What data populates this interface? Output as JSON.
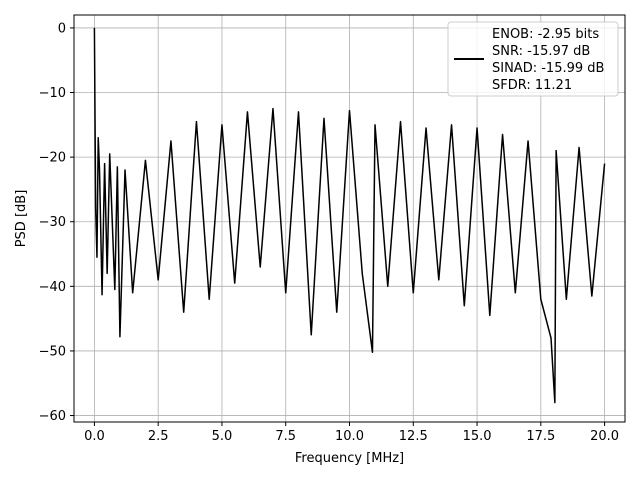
{
  "chart_data": {
    "type": "line",
    "xlabel": "Frequency [MHz]",
    "ylabel": "PSD [dB]",
    "xlim": [
      -0.8,
      20.8
    ],
    "ylim": [
      -61,
      2
    ],
    "x_ticks": [
      0.0,
      2.5,
      5.0,
      7.5,
      10.0,
      12.5,
      15.0,
      17.5,
      20.0
    ],
    "x_tick_labels": [
      "0.0",
      "2.5",
      "5.0",
      "7.5",
      "10.0",
      "12.5",
      "15.0",
      "17.5",
      "20.0"
    ],
    "y_ticks": [
      0,
      -10,
      -20,
      -30,
      -40,
      -50,
      -60
    ],
    "y_tick_labels": [
      "0",
      "−10",
      "−20",
      "−30",
      "−40",
      "−50",
      "−60"
    ],
    "grid": true,
    "legend_position": "top-right",
    "legend_lines": [
      "ENOB: -2.95 bits",
      "SNR: -15.97 dB",
      "SINAD: -15.99 dB",
      "SFDR: 11.21"
    ],
    "series": [
      {
        "color": "#000000",
        "x": [
          0.0,
          0.02,
          0.05,
          0.1,
          0.15,
          0.2,
          0.3,
          0.4,
          0.5,
          0.6,
          0.7,
          0.8,
          0.9,
          1.0,
          1.2,
          1.5,
          2.0,
          2.5,
          3.0,
          3.5,
          4.0,
          4.5,
          5.0,
          5.5,
          6.0,
          6.5,
          7.0,
          7.5,
          8.0,
          8.5,
          9.0,
          9.5,
          10.0,
          10.5,
          10.9,
          11.0,
          11.5,
          12.0,
          12.5,
          13.0,
          13.5,
          14.0,
          14.5,
          15.0,
          15.5,
          16.0,
          16.5,
          17.0,
          17.5,
          17.9,
          18.05,
          18.1,
          18.5,
          19.0,
          19.5,
          20.0
        ],
        "y": [
          0.0,
          -11.7,
          -28.0,
          -35.5,
          -17.0,
          -22.0,
          -41.3,
          -21.0,
          -38.0,
          -19.5,
          -30.0,
          -40.5,
          -21.5,
          -47.8,
          -22.0,
          -41.0,
          -20.5,
          -39.0,
          -17.5,
          -44.0,
          -14.5,
          -42.0,
          -15.0,
          -39.5,
          -13.0,
          -37.0,
          -12.5,
          -41.0,
          -13.0,
          -47.5,
          -14.0,
          -44.0,
          -12.8,
          -38.0,
          -50.2,
          -15.0,
          -40.0,
          -14.5,
          -41.0,
          -15.5,
          -39.0,
          -15.0,
          -43.0,
          -15.5,
          -44.5,
          -16.5,
          -41.0,
          -17.5,
          -42.0,
          -48.0,
          -58.0,
          -19.0,
          -42.0,
          -18.5,
          -41.5,
          -21.0
        ]
      }
    ]
  }
}
